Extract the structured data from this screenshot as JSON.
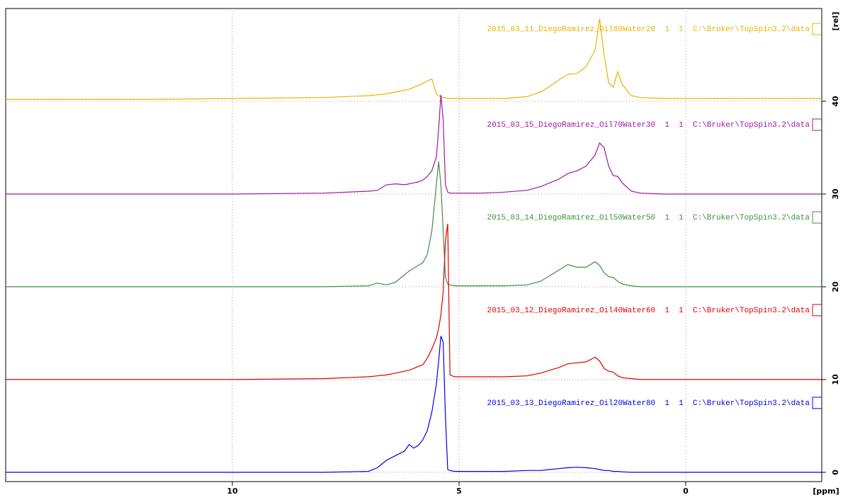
{
  "chart_data": {
    "type": "line",
    "xlabel": "[ppm]",
    "ylabel": "[rel]",
    "xlim": [
      15,
      -3
    ],
    "ylim": [
      -1,
      50
    ],
    "xticks": [
      10,
      5,
      0
    ],
    "yticks": [
      0,
      10,
      20,
      30,
      40
    ],
    "grid": true,
    "y_axis_side": "right",
    "x": [
      15,
      12,
      10,
      8,
      7,
      6.8,
      6.6,
      6.4,
      6.2,
      6.1,
      6.0,
      5.9,
      5.8,
      5.7,
      5.6,
      5.5,
      5.45,
      5.4,
      5.35,
      5.3,
      5.25,
      5.2,
      5.1,
      5.0,
      4.5,
      4.0,
      3.5,
      3.2,
      3.0,
      2.8,
      2.6,
      2.4,
      2.2,
      2.0,
      1.9,
      1.8,
      1.7,
      1.6,
      1.5,
      1.4,
      1.2,
      1.0,
      0.5,
      0,
      -3
    ],
    "series": [
      {
        "name": "2015_03_11_DiegoRamirez_Oil80Water20  1  1  C:\\Bruker\\TopSpin3.2\\data",
        "color": "#e8b400",
        "values": [
          40.2,
          40.2,
          40.3,
          40.4,
          40.6,
          40.7,
          40.8,
          41,
          41.2,
          41.3,
          41.5,
          41.7,
          41.9,
          42.2,
          42.4,
          40.8,
          40.6,
          40.5,
          40.4,
          40.4,
          40.3,
          40.3,
          40.3,
          40.3,
          40.3,
          40.3,
          40.5,
          41,
          41.6,
          42.3,
          42.9,
          43,
          43.7,
          45.5,
          48.9,
          45,
          42,
          41.5,
          43.2,
          41.8,
          40.6,
          40.4,
          40.3,
          40.3,
          40.3
        ]
      },
      {
        "name": "2015_03_15_DiegoRamirez_Oil70Water30  1  1  C:\\Bruker\\TopSpin3.2\\data",
        "color": "#a0189e",
        "values": [
          30,
          30,
          30,
          30.1,
          30.3,
          30.4,
          31,
          31.1,
          31,
          31.1,
          31.2,
          31.3,
          31.5,
          31.9,
          32.5,
          34,
          37,
          40.7,
          38,
          31,
          30.2,
          30.1,
          30.1,
          30.1,
          30.1,
          30.2,
          30.4,
          30.8,
          31.2,
          31.6,
          32.2,
          32.5,
          33,
          34.2,
          35.5,
          35,
          33,
          32,
          31.9,
          31.2,
          30.3,
          30.1,
          30,
          30,
          30
        ]
      },
      {
        "name": "2015_03_14_DiegoRamirez_Oil50Water50  1  1  C:\\Bruker\\TopSpin3.2\\data",
        "color": "#3f8f3f",
        "values": [
          20,
          20,
          20,
          20,
          20.1,
          20.4,
          20.2,
          20.5,
          21.3,
          21.7,
          22,
          22.3,
          22.6,
          23.5,
          26,
          31,
          33.5,
          31,
          26,
          21,
          20.3,
          20.2,
          20.1,
          20.1,
          20.1,
          20.1,
          20.2,
          20.6,
          21.2,
          21.8,
          22.4,
          22.1,
          22.1,
          22.7,
          22.3,
          21.5,
          21.1,
          21,
          20.6,
          20.3,
          20.1,
          20,
          20,
          20,
          20
        ]
      },
      {
        "name": "2015_03_12_DiegoRamirez_Oil40Water60  1  1  C:\\Bruker\\TopSpin3.2\\data",
        "color": "#e00000",
        "values": [
          10,
          10,
          10,
          10.1,
          10.3,
          10.4,
          10.5,
          10.7,
          10.9,
          11,
          11.2,
          11.4,
          11.6,
          12.3,
          13.3,
          14.5,
          15.5,
          17,
          19.5,
          25,
          26.8,
          10.5,
          10.3,
          10.3,
          10.3,
          10.3,
          10.4,
          10.7,
          11,
          11.3,
          11.7,
          11.8,
          11.9,
          12.4,
          12,
          11.2,
          10.9,
          10.8,
          10.4,
          10.2,
          10.1,
          10,
          10,
          10,
          10
        ]
      },
      {
        "name": "2015_03_13_DiegoRamirez_Oil20Water80  1  1  C:\\Bruker\\TopSpin3.2\\data",
        "color": "#0000e0",
        "values": [
          0,
          0,
          0,
          0,
          0.1,
          0.5,
          1.3,
          1.8,
          2.3,
          3,
          2.6,
          2.9,
          3.5,
          4.5,
          6.5,
          9.5,
          12,
          14.7,
          14,
          6,
          0.3,
          0.2,
          0.1,
          0.1,
          0.1,
          0.1,
          0.2,
          0.2,
          0.3,
          0.4,
          0.5,
          0.55,
          0.5,
          0.4,
          0.3,
          0.2,
          0.2,
          0.1,
          0.1,
          0.05,
          0,
          0,
          0,
          0,
          0
        ]
      }
    ]
  }
}
